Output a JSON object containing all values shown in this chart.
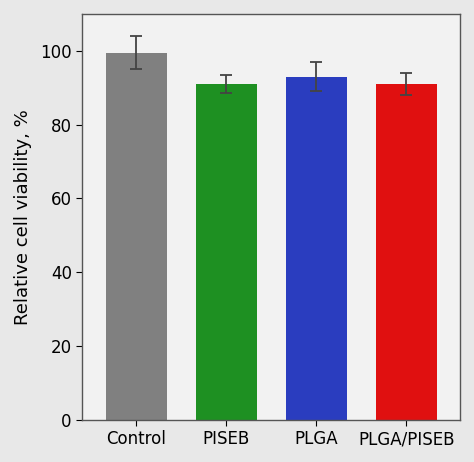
{
  "categories": [
    "Control",
    "PISEB",
    "PLGA",
    "PLGA/PISEB"
  ],
  "values": [
    99.5,
    91.0,
    93.0,
    91.0
  ],
  "errors": [
    4.5,
    2.5,
    4.0,
    3.0
  ],
  "bar_colors": [
    "#808080",
    "#1e9022",
    "#2a3dbf",
    "#e01010"
  ],
  "bar_width": 0.68,
  "ylabel": "Relative cell viability, %",
  "ylim": [
    0,
    110
  ],
  "yticks": [
    0,
    20,
    40,
    60,
    80,
    100
  ],
  "ylabel_fontsize": 13,
  "tick_fontsize": 12,
  "xlabel_fontsize": 12,
  "plot_bg_color": "#f2f2f2",
  "fig_bg_color": "#e8e8e8",
  "edge_color": "none",
  "capsize": 4,
  "error_color": "#444444",
  "spine_color": "#555555"
}
